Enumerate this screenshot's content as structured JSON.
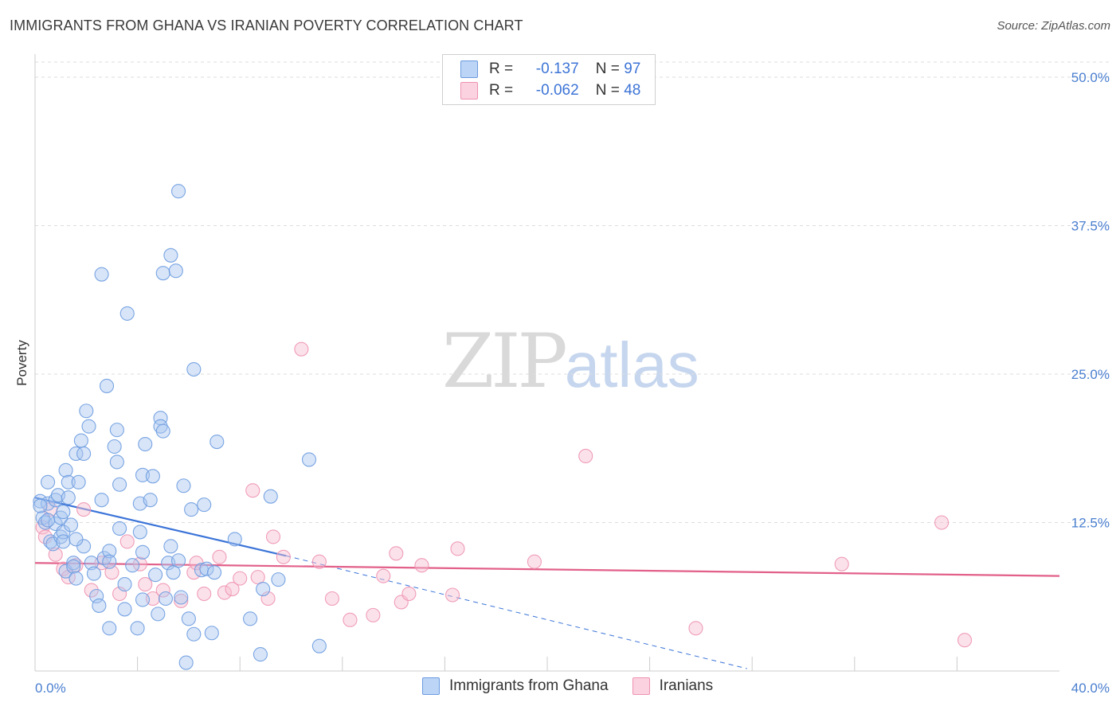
{
  "title": "IMMIGRANTS FROM GHANA VS IRANIAN POVERTY CORRELATION CHART",
  "source": "Source: ZipAtlas.com",
  "watermark": {
    "zip": "ZIP",
    "atlas": "atlas"
  },
  "colors": {
    "blue_fill": "#a8c6f0",
    "blue_stroke": "#6b9be0",
    "blue_line": "#3b74d8",
    "pink_fill": "#f6bfd0",
    "pink_stroke": "#ee92b0",
    "pink_line": "#e2608a",
    "tick_text": "#4a7fd0",
    "grid": "#dddddd"
  },
  "legend": {
    "rows": [
      {
        "r_label": "R =",
        "r_value": "-0.137",
        "n_label": "N =",
        "n_value": "97"
      },
      {
        "r_label": "R =",
        "r_value": "-0.062",
        "n_label": "N =",
        "n_value": "48"
      }
    ]
  },
  "chart_data": {
    "type": "scatter",
    "ylabel": "Poverty",
    "xlim": [
      0,
      40
    ],
    "ylim": [
      0,
      50
    ],
    "x_tick_labels": [
      {
        "value": 0,
        "label": "0.0%"
      },
      {
        "value": 40,
        "label": "40.0%"
      }
    ],
    "y_tick_labels": [
      {
        "value": 12.5,
        "label": "12.5%"
      },
      {
        "value": 25,
        "label": "25.0%"
      },
      {
        "value": 37.5,
        "label": "37.5%"
      },
      {
        "value": 50,
        "label": "50.0%"
      }
    ],
    "series": [
      {
        "name": "Immigrants from Ghana",
        "trend": {
          "x0": 0,
          "y0": 14.6,
          "x1": 9.8,
          "y1": 9.7,
          "dash_x1": 27.8,
          "dash_y1": 0.2
        },
        "points": [
          [
            0.2,
            14.3
          ],
          [
            0.3,
            12.9
          ],
          [
            0.4,
            12.5
          ],
          [
            0.5,
            15.9
          ],
          [
            0.5,
            14.1
          ],
          [
            0.6,
            10.9
          ],
          [
            0.7,
            10.7
          ],
          [
            0.8,
            12.4
          ],
          [
            0.8,
            14.4
          ],
          [
            0.9,
            14.8
          ],
          [
            1.0,
            11.3
          ],
          [
            1.0,
            12.9
          ],
          [
            1.1,
            11.7
          ],
          [
            1.1,
            10.9
          ],
          [
            1.2,
            8.4
          ],
          [
            1.2,
            16.9
          ],
          [
            1.3,
            15.9
          ],
          [
            1.3,
            14.6
          ],
          [
            1.4,
            12.3
          ],
          [
            1.5,
            9.1
          ],
          [
            1.5,
            8.8
          ],
          [
            1.6,
            18.3
          ],
          [
            1.6,
            7.8
          ],
          [
            1.7,
            15.9
          ],
          [
            1.8,
            19.4
          ],
          [
            1.9,
            10.5
          ],
          [
            1.9,
            18.3
          ],
          [
            2.0,
            21.9
          ],
          [
            2.1,
            20.6
          ],
          [
            2.2,
            9.1
          ],
          [
            2.3,
            8.2
          ],
          [
            2.4,
            6.3
          ],
          [
            2.5,
            5.5
          ],
          [
            2.6,
            33.4
          ],
          [
            2.6,
            14.4
          ],
          [
            2.7,
            9.5
          ],
          [
            2.8,
            24.0
          ],
          [
            2.9,
            10.1
          ],
          [
            2.9,
            3.6
          ],
          [
            3.1,
            18.9
          ],
          [
            3.2,
            17.6
          ],
          [
            3.2,
            20.3
          ],
          [
            3.3,
            15.7
          ],
          [
            3.5,
            7.3
          ],
          [
            3.5,
            5.2
          ],
          [
            3.6,
            30.1
          ],
          [
            3.8,
            8.9
          ],
          [
            4.0,
            3.6
          ],
          [
            4.1,
            11.7
          ],
          [
            4.1,
            14.1
          ],
          [
            4.2,
            16.5
          ],
          [
            4.2,
            6.0
          ],
          [
            4.3,
            19.1
          ],
          [
            4.5,
            14.4
          ],
          [
            4.6,
            16.4
          ],
          [
            4.7,
            8.1
          ],
          [
            4.8,
            4.8
          ],
          [
            4.9,
            21.3
          ],
          [
            4.9,
            20.6
          ],
          [
            5.0,
            20.2
          ],
          [
            5.0,
            33.5
          ],
          [
            5.1,
            6.1
          ],
          [
            5.2,
            9.1
          ],
          [
            5.3,
            35.0
          ],
          [
            5.3,
            10.5
          ],
          [
            5.4,
            8.3
          ],
          [
            5.5,
            33.7
          ],
          [
            5.6,
            9.3
          ],
          [
            5.6,
            40.4
          ],
          [
            5.7,
            6.2
          ],
          [
            5.8,
            15.6
          ],
          [
            5.9,
            0.7
          ],
          [
            6.0,
            4.4
          ],
          [
            6.1,
            13.6
          ],
          [
            6.2,
            3.1
          ],
          [
            6.2,
            25.4
          ],
          [
            6.5,
            8.5
          ],
          [
            6.6,
            14.0
          ],
          [
            6.7,
            8.6
          ],
          [
            6.9,
            3.2
          ],
          [
            7.0,
            8.3
          ],
          [
            7.1,
            19.3
          ],
          [
            7.8,
            11.1
          ],
          [
            8.4,
            4.4
          ],
          [
            8.8,
            1.4
          ],
          [
            8.9,
            6.9
          ],
          [
            9.2,
            14.7
          ],
          [
            9.5,
            7.7
          ],
          [
            10.7,
            17.8
          ],
          [
            11.1,
            2.1
          ],
          [
            0.2,
            13.9
          ],
          [
            0.5,
            12.7
          ],
          [
            1.1,
            13.4
          ],
          [
            1.6,
            11.1
          ],
          [
            2.9,
            9.2
          ],
          [
            3.3,
            12.0
          ],
          [
            4.2,
            10.0
          ]
        ]
      },
      {
        "name": "Iranians",
        "trend": {
          "x0": 0,
          "y0": 9.1,
          "x1": 40,
          "y1": 8.0
        },
        "points": [
          [
            0.3,
            12.1
          ],
          [
            0.4,
            11.3
          ],
          [
            0.6,
            13.6
          ],
          [
            0.8,
            9.8
          ],
          [
            1.1,
            8.6
          ],
          [
            1.3,
            7.9
          ],
          [
            1.6,
            8.9
          ],
          [
            1.9,
            13.6
          ],
          [
            2.2,
            6.8
          ],
          [
            2.6,
            9.1
          ],
          [
            3.0,
            8.3
          ],
          [
            3.3,
            6.5
          ],
          [
            3.6,
            10.9
          ],
          [
            4.1,
            9.0
          ],
          [
            4.3,
            7.3
          ],
          [
            4.6,
            6.1
          ],
          [
            5.0,
            6.8
          ],
          [
            5.7,
            5.9
          ],
          [
            6.2,
            8.3
          ],
          [
            6.3,
            9.1
          ],
          [
            6.6,
            6.5
          ],
          [
            7.2,
            9.6
          ],
          [
            7.4,
            6.6
          ],
          [
            7.7,
            6.9
          ],
          [
            8.0,
            7.8
          ],
          [
            8.5,
            15.2
          ],
          [
            8.7,
            7.9
          ],
          [
            9.1,
            6.1
          ],
          [
            9.3,
            11.3
          ],
          [
            9.7,
            9.6
          ],
          [
            10.4,
            27.1
          ],
          [
            11.1,
            9.2
          ],
          [
            11.6,
            6.1
          ],
          [
            12.3,
            4.3
          ],
          [
            13.2,
            4.7
          ],
          [
            13.6,
            8.0
          ],
          [
            14.1,
            9.9
          ],
          [
            14.3,
            5.8
          ],
          [
            14.6,
            6.5
          ],
          [
            15.1,
            8.9
          ],
          [
            16.3,
            6.4
          ],
          [
            16.5,
            10.3
          ],
          [
            19.5,
            9.2
          ],
          [
            21.5,
            18.1
          ],
          [
            25.8,
            3.6
          ],
          [
            31.5,
            9.0
          ],
          [
            35.4,
            12.5
          ],
          [
            36.3,
            2.6
          ]
        ]
      }
    ]
  }
}
